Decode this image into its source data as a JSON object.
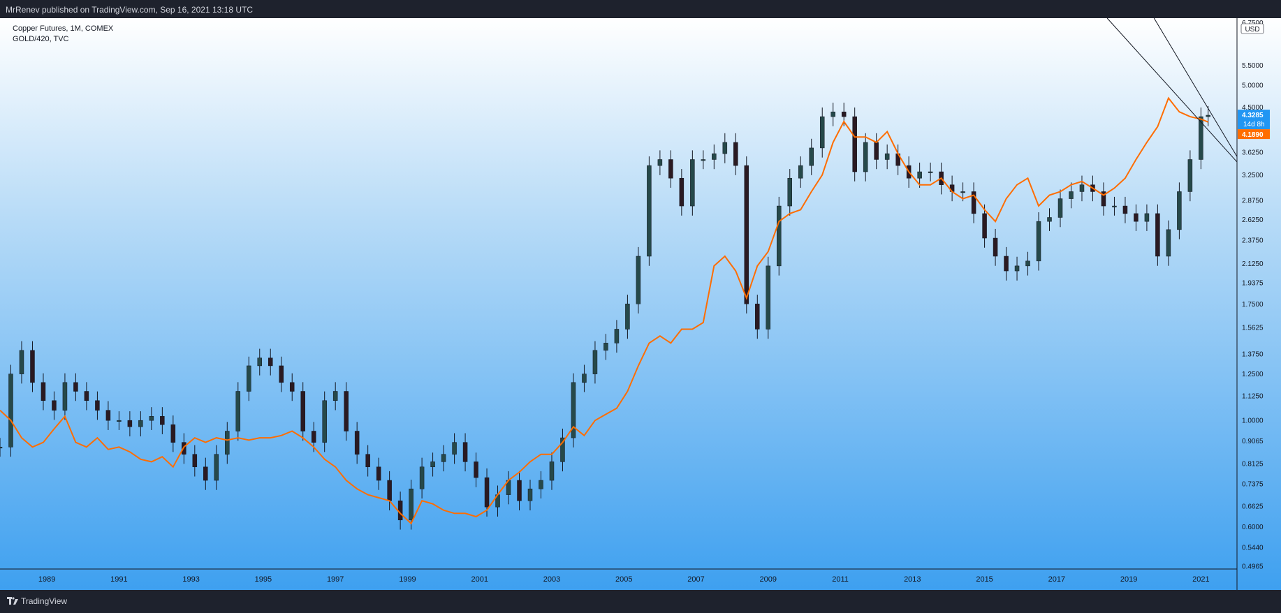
{
  "header": {
    "published_line": "MrRenev published on TradingView.com, Sep 16, 2021 13:18 UTC"
  },
  "footer": {
    "brand": "TradingView"
  },
  "chart_data": {
    "type": "line",
    "legend": [
      {
        "label": "Copper Futures, 1M, COMEX"
      },
      {
        "label": "GOLD/420, TVC"
      }
    ],
    "currency_label": "USD",
    "y_scale": "log",
    "ylim": [
      0.49,
      6.9
    ],
    "xlim": [
      1988.2,
      2022.5
    ],
    "x_ticks": [
      "1989",
      "1991",
      "1993",
      "1995",
      "1997",
      "1999",
      "2001",
      "2003",
      "2005",
      "2007",
      "2009",
      "2011",
      "2013",
      "2015",
      "2017",
      "2019",
      "2021"
    ],
    "y_ticks": [
      "6.7500",
      "5.5000",
      "5.0000",
      "4.5000",
      "3.6250",
      "3.2500",
      "2.8750",
      "2.6250",
      "2.3750",
      "2.1250",
      "1.9375",
      "1.7500",
      "1.5625",
      "1.3750",
      "1.2500",
      "1.1250",
      "1.0000",
      "0.9065",
      "0.8125",
      "0.7375",
      "0.6625",
      "0.6000",
      "0.5440",
      "0.4965"
    ],
    "price_labels": [
      {
        "series": "Copper Futures",
        "value": "4.3285",
        "countdown": "14d 8h",
        "color": "#2196f3"
      },
      {
        "series": "GOLD/420",
        "value": "4.1890",
        "color": "#ff6d00"
      }
    ],
    "series": [
      {
        "name": "Copper Futures",
        "color": "#131722",
        "style": "candles",
        "x": [
          1988.2,
          1988.5,
          1988.8,
          1989.1,
          1989.4,
          1989.7,
          1990.0,
          1990.3,
          1990.6,
          1990.9,
          1991.2,
          1991.5,
          1991.8,
          1992.1,
          1992.4,
          1992.7,
          1993.0,
          1993.3,
          1993.6,
          1993.9,
          1994.2,
          1994.5,
          1994.8,
          1995.1,
          1995.4,
          1995.7,
          1996.0,
          1996.3,
          1996.6,
          1996.9,
          1997.2,
          1997.5,
          1997.8,
          1998.1,
          1998.4,
          1998.7,
          1999.0,
          1999.3,
          1999.6,
          1999.9,
          2000.2,
          2000.5,
          2000.8,
          2001.1,
          2001.4,
          2001.7,
          2002.0,
          2002.3,
          2002.6,
          2002.9,
          2003.2,
          2003.5,
          2003.8,
          2004.1,
          2004.4,
          2004.7,
          2005.0,
          2005.3,
          2005.6,
          2005.9,
          2006.2,
          2006.5,
          2006.8,
          2007.1,
          2007.4,
          2007.7,
          2008.0,
          2008.3,
          2008.6,
          2008.9,
          2009.2,
          2009.5,
          2009.8,
          2010.1,
          2010.4,
          2010.7,
          2011.0,
          2011.3,
          2011.6,
          2011.9,
          2012.2,
          2012.5,
          2012.8,
          2013.1,
          2013.4,
          2013.7,
          2014.0,
          2014.3,
          2014.6,
          2014.9,
          2015.2,
          2015.5,
          2015.8,
          2016.1,
          2016.4,
          2016.7,
          2017.0,
          2017.3,
          2017.6,
          2017.9,
          2018.2,
          2018.5,
          2018.8,
          2019.1,
          2019.4,
          2019.7,
          2020.0,
          2020.3,
          2020.6,
          2020.9,
          2021.2,
          2021.5,
          2021.7
        ],
        "values": [
          0.88,
          1.25,
          1.4,
          1.2,
          1.1,
          1.05,
          1.2,
          1.15,
          1.1,
          1.05,
          1.0,
          1.0,
          0.97,
          1.0,
          1.02,
          0.98,
          0.9,
          0.85,
          0.8,
          0.75,
          0.85,
          0.95,
          1.15,
          1.3,
          1.35,
          1.3,
          1.2,
          1.15,
          0.95,
          0.9,
          1.1,
          1.15,
          0.95,
          0.85,
          0.8,
          0.75,
          0.68,
          0.62,
          0.72,
          0.8,
          0.82,
          0.85,
          0.9,
          0.82,
          0.76,
          0.66,
          0.7,
          0.75,
          0.68,
          0.72,
          0.75,
          0.82,
          0.92,
          1.2,
          1.25,
          1.4,
          1.45,
          1.55,
          1.75,
          2.2,
          3.4,
          3.5,
          3.2,
          2.8,
          3.5,
          3.5,
          3.6,
          3.8,
          3.4,
          1.75,
          1.55,
          2.1,
          2.8,
          3.2,
          3.4,
          3.7,
          4.3,
          4.4,
          4.3,
          3.3,
          3.8,
          3.5,
          3.6,
          3.4,
          3.2,
          3.3,
          3.3,
          3.1,
          3.0,
          3.0,
          2.7,
          2.4,
          2.2,
          2.05,
          2.1,
          2.15,
          2.6,
          2.65,
          2.9,
          3.0,
          3.1,
          3.0,
          2.8,
          2.8,
          2.7,
          2.6,
          2.7,
          2.2,
          2.5,
          3.0,
          3.5,
          4.3,
          4.33
        ]
      },
      {
        "name": "GOLD/420",
        "color": "#ff6d00",
        "style": "line",
        "x": [
          1988.2,
          1988.5,
          1988.8,
          1989.1,
          1989.4,
          1989.7,
          1990.0,
          1990.3,
          1990.6,
          1990.9,
          1991.2,
          1991.5,
          1991.8,
          1992.1,
          1992.4,
          1992.7,
          1993.0,
          1993.3,
          1993.6,
          1993.9,
          1994.2,
          1994.5,
          1994.8,
          1995.1,
          1995.4,
          1995.7,
          1996.0,
          1996.3,
          1996.6,
          1996.9,
          1997.2,
          1997.5,
          1997.8,
          1998.1,
          1998.4,
          1998.7,
          1999.0,
          1999.3,
          1999.6,
          1999.9,
          2000.2,
          2000.5,
          2000.8,
          2001.1,
          2001.4,
          2001.7,
          2002.0,
          2002.3,
          2002.6,
          2002.9,
          2003.2,
          2003.5,
          2003.8,
          2004.1,
          2004.4,
          2004.7,
          2005.0,
          2005.3,
          2005.6,
          2005.9,
          2006.2,
          2006.5,
          2006.8,
          2007.1,
          2007.4,
          2007.7,
          2008.0,
          2008.3,
          2008.6,
          2008.9,
          2009.2,
          2009.5,
          2009.8,
          2010.1,
          2010.4,
          2010.7,
          2011.0,
          2011.3,
          2011.6,
          2011.9,
          2012.2,
          2012.5,
          2012.8,
          2013.1,
          2013.4,
          2013.7,
          2014.0,
          2014.3,
          2014.6,
          2014.9,
          2015.2,
          2015.5,
          2015.8,
          2016.1,
          2016.4,
          2016.7,
          2017.0,
          2017.3,
          2017.6,
          2017.9,
          2018.2,
          2018.5,
          2018.8,
          2019.1,
          2019.4,
          2019.7,
          2020.0,
          2020.3,
          2020.6,
          2020.9,
          2021.2,
          2021.5,
          2021.7
        ],
        "values": [
          1.05,
          1.0,
          0.92,
          0.88,
          0.9,
          0.96,
          1.02,
          0.9,
          0.88,
          0.92,
          0.87,
          0.88,
          0.86,
          0.83,
          0.82,
          0.84,
          0.8,
          0.88,
          0.92,
          0.9,
          0.92,
          0.91,
          0.92,
          0.91,
          0.92,
          0.92,
          0.93,
          0.95,
          0.92,
          0.88,
          0.83,
          0.8,
          0.75,
          0.72,
          0.7,
          0.69,
          0.68,
          0.64,
          0.61,
          0.68,
          0.67,
          0.65,
          0.64,
          0.64,
          0.63,
          0.65,
          0.7,
          0.75,
          0.78,
          0.82,
          0.85,
          0.85,
          0.9,
          0.97,
          0.93,
          1.0,
          1.03,
          1.06,
          1.15,
          1.3,
          1.45,
          1.5,
          1.45,
          1.55,
          1.55,
          1.6,
          2.1,
          2.2,
          2.05,
          1.8,
          2.1,
          2.25,
          2.6,
          2.7,
          2.75,
          3.0,
          3.25,
          3.8,
          4.2,
          3.9,
          3.9,
          3.8,
          4.0,
          3.6,
          3.3,
          3.1,
          3.1,
          3.2,
          3.0,
          2.9,
          2.95,
          2.75,
          2.6,
          2.9,
          3.1,
          3.2,
          2.8,
          2.95,
          3.0,
          3.1,
          3.15,
          3.05,
          2.95,
          3.05,
          3.2,
          3.5,
          3.8,
          4.1,
          4.7,
          4.4,
          4.3,
          4.25,
          4.19
        ]
      }
    ],
    "trendlines": [
      {
        "name": "upper-trendline",
        "from": [
          2018.9,
          6.9
        ],
        "to": [
          2022.5,
          3.46
        ]
      },
      {
        "name": "lower-trendline",
        "from": [
          2020.2,
          6.9
        ],
        "to": [
          2022.5,
          3.55
        ]
      }
    ]
  }
}
